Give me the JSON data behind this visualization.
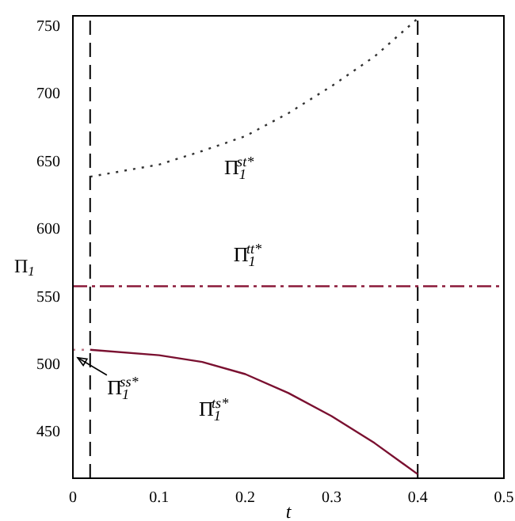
{
  "chart_data": {
    "type": "line",
    "xlabel": "t",
    "ylabel": "Π$_{1}$",
    "xlim": [
      0,
      0.5
    ],
    "xticks": [
      0,
      0.1,
      0.2,
      0.3,
      0.4,
      0.5
    ],
    "ylim": [
      415,
      757
    ],
    "yticks": [
      450,
      500,
      550,
      600,
      650,
      700,
      750
    ],
    "marker": "none",
    "series": [
      {
        "name": "Π$_{1}$$^{st*}$",
        "color": "#333333",
        "line_style": "dotted",
        "x": [
          0.02,
          0.1,
          0.15,
          0.2,
          0.25,
          0.3,
          0.35,
          0.4
        ],
        "values": [
          638,
          647,
          657,
          668,
          685,
          705,
          727,
          755
        ]
      },
      {
        "name": "Π$_{1}$$^{tt*}$",
        "color": "#8b1a3a",
        "line_style": "dashdot",
        "x": [
          0,
          0.5
        ],
        "values": [
          557,
          557
        ]
      },
      {
        "name": "Π$_{1}$$^{ts*}$",
        "color": "#7a1030",
        "line_style": "solid",
        "x": [
          0.02,
          0.1,
          0.15,
          0.2,
          0.25,
          0.3,
          0.35,
          0.4
        ],
        "values": [
          510,
          506,
          501,
          492,
          478,
          461,
          441,
          418
        ]
      },
      {
        "name": "Π$_{1}$$^{ss*}$",
        "color": "#c07a8a",
        "line_style": "dotted",
        "x": [
          0,
          0.02
        ],
        "values": [
          510,
          510
        ]
      }
    ],
    "ref_lines": [
      {
        "axis": "x",
        "value": 0.02,
        "color": "#000000",
        "line_style": "dashed"
      },
      {
        "axis": "x",
        "value": 0.4,
        "color": "#000000",
        "line_style": "dashed"
      }
    ]
  }
}
